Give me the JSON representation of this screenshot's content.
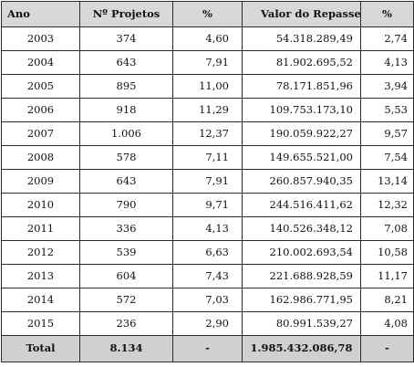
{
  "headers": {
    "ano": "Ano",
    "projetos": "Nº Projetos",
    "pct1": "%",
    "valor": "Valor do Repasse",
    "pct2": "%"
  },
  "rows": [
    {
      "ano": "2003",
      "projetos": "374",
      "pct1": "4,60",
      "valor": "54.318.289,49",
      "pct2": "2,74"
    },
    {
      "ano": "2004",
      "projetos": "643",
      "pct1": "7,91",
      "valor": "81.902.695,52",
      "pct2": "4,13"
    },
    {
      "ano": "2005",
      "projetos": "895",
      "pct1": "11,00",
      "valor": "78.171.851,96",
      "pct2": "3,94"
    },
    {
      "ano": "2006",
      "projetos": "918",
      "pct1": "11,29",
      "valor": "109.753.173,10",
      "pct2": "5,53"
    },
    {
      "ano": "2007",
      "projetos": "1.006",
      "pct1": "12,37",
      "valor": "190.059.922,27",
      "pct2": "9,57"
    },
    {
      "ano": "2008",
      "projetos": "578",
      "pct1": "7,11",
      "valor": "149.655.521,00",
      "pct2": "7,54"
    },
    {
      "ano": "2009",
      "projetos": "643",
      "pct1": "7,91",
      "valor": "260.857.940,35",
      "pct2": "13,14"
    },
    {
      "ano": "2010",
      "projetos": "790",
      "pct1": "9,71",
      "valor": "244.516.411,62",
      "pct2": "12,32"
    },
    {
      "ano": "2011",
      "projetos": "336",
      "pct1": "4,13",
      "valor": "140.526.348,12",
      "pct2": "7,08"
    },
    {
      "ano": "2012",
      "projetos": "539",
      "pct1": "6,63",
      "valor": "210.002.693,54",
      "pct2": "10,58"
    },
    {
      "ano": "2013",
      "projetos": "604",
      "pct1": "7,43",
      "valor": "221.688.928,59",
      "pct2": "11,17"
    },
    {
      "ano": "2014",
      "projetos": "572",
      "pct1": "7,03",
      "valor": "162.986.771,95",
      "pct2": "8,21"
    },
    {
      "ano": "2015",
      "projetos": "236",
      "pct1": "2,90",
      "valor": "80.991.539,27",
      "pct2": "4,08"
    }
  ],
  "total": {
    "ano": "Total",
    "projetos": "8.134",
    "pct1": "-",
    "valor": "1.985.432.086,78",
    "pct2": "-"
  }
}
